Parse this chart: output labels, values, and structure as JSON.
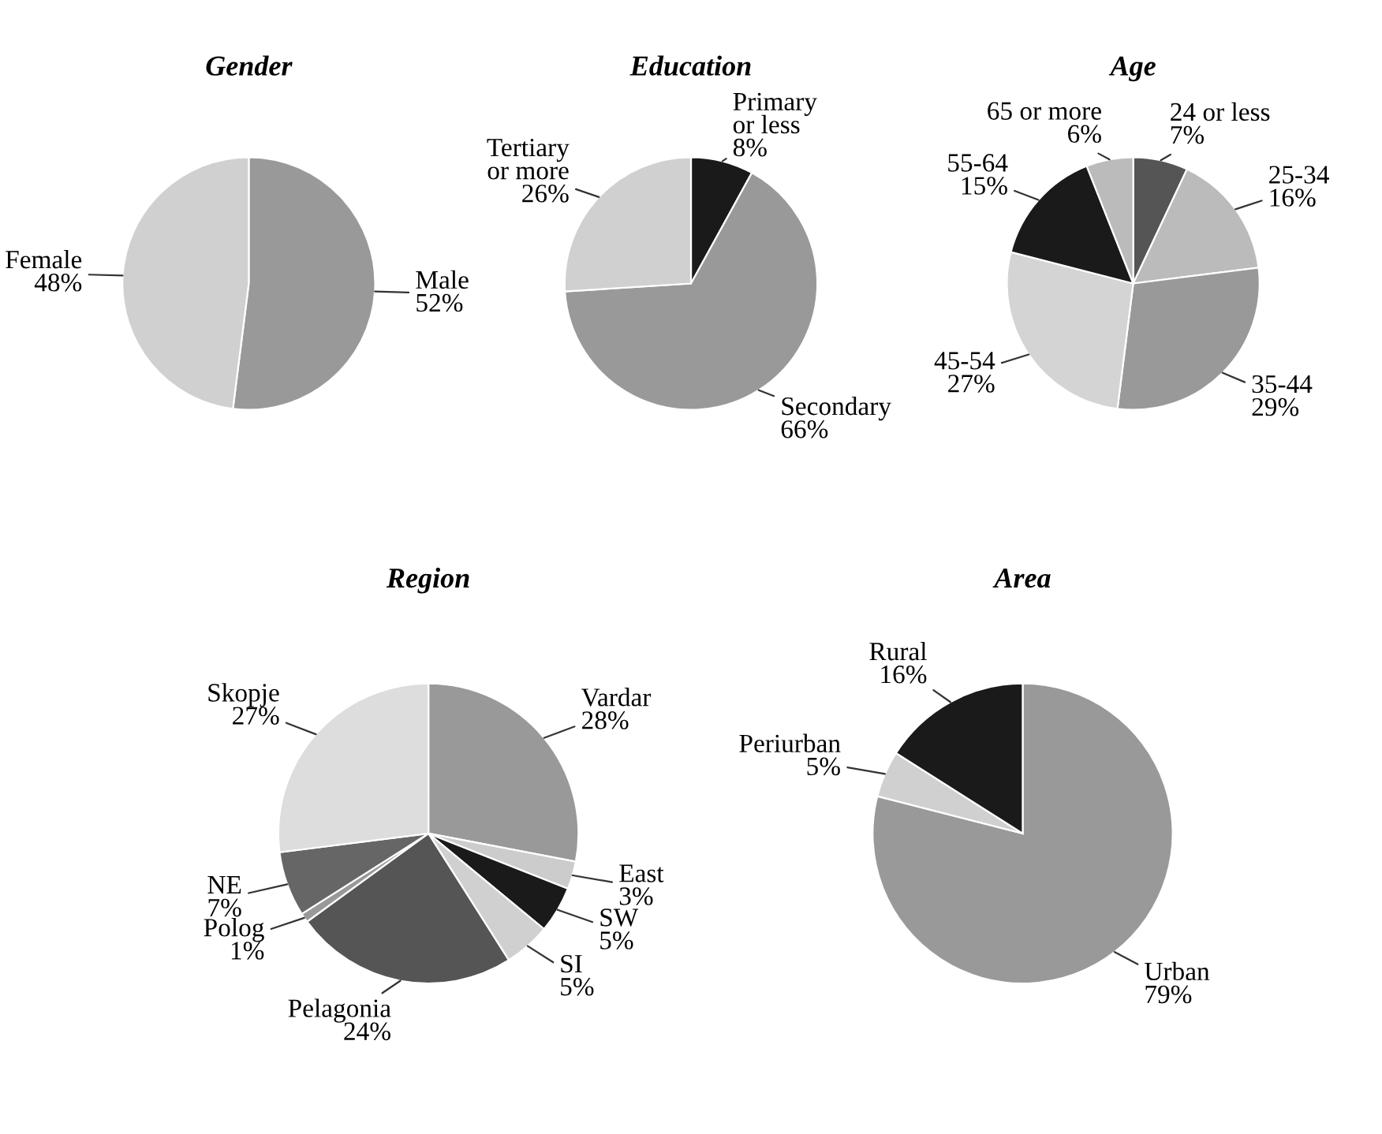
{
  "chart_data": [
    {
      "type": "pie",
      "title": "Gender",
      "categories": [
        "Male",
        "Female"
      ],
      "values": [
        52,
        48
      ],
      "colors": [
        "#999999",
        "#d0d0d0"
      ],
      "value_labels": [
        "52%",
        "48%"
      ]
    },
    {
      "type": "pie",
      "title": "Education",
      "categories": [
        "Primary\nor less",
        "Secondary",
        "Tertiary\nor more"
      ],
      "values": [
        8,
        66,
        26
      ],
      "colors": [
        "#1a1a1a",
        "#999999",
        "#d0d0d0"
      ],
      "value_labels": [
        "8%",
        "66%",
        "26%"
      ]
    },
    {
      "type": "pie",
      "title": "Age",
      "categories": [
        "24 or less",
        "25-34",
        "35-44",
        "45-54",
        "55-64",
        "65 or more"
      ],
      "values": [
        7,
        16,
        29,
        27,
        15,
        6
      ],
      "colors": [
        "#555555",
        "#bbbbbb",
        "#999999",
        "#d4d4d4",
        "#1a1a1a",
        "#bbbbbb"
      ],
      "value_labels": [
        "7%",
        "16%",
        "29%",
        "27%",
        "15%",
        "6%"
      ]
    },
    {
      "type": "pie",
      "title": "Region",
      "categories": [
        "Vardar",
        "East",
        "SW",
        "SI",
        "Pelagonia",
        "Polog",
        "NE",
        "Skopje"
      ],
      "values": [
        28,
        3,
        5,
        5,
        24,
        1,
        7,
        27
      ],
      "colors": [
        "#999999",
        "#cccccc",
        "#1a1a1a",
        "#d0d0d0",
        "#555555",
        "#999999",
        "#666666",
        "#dddddd"
      ],
      "value_labels": [
        "28%",
        "3%",
        "5%",
        "5%",
        "24%",
        "1%",
        "7%",
        "27%"
      ]
    },
    {
      "type": "pie",
      "title": "Area",
      "categories": [
        "Urban",
        "Periurban",
        "Rural"
      ],
      "values": [
        79,
        5,
        16
      ],
      "colors": [
        "#999999",
        "#d0d0d0",
        "#1a1a1a"
      ],
      "value_labels": [
        "79%",
        "5%",
        "16%"
      ]
    }
  ]
}
